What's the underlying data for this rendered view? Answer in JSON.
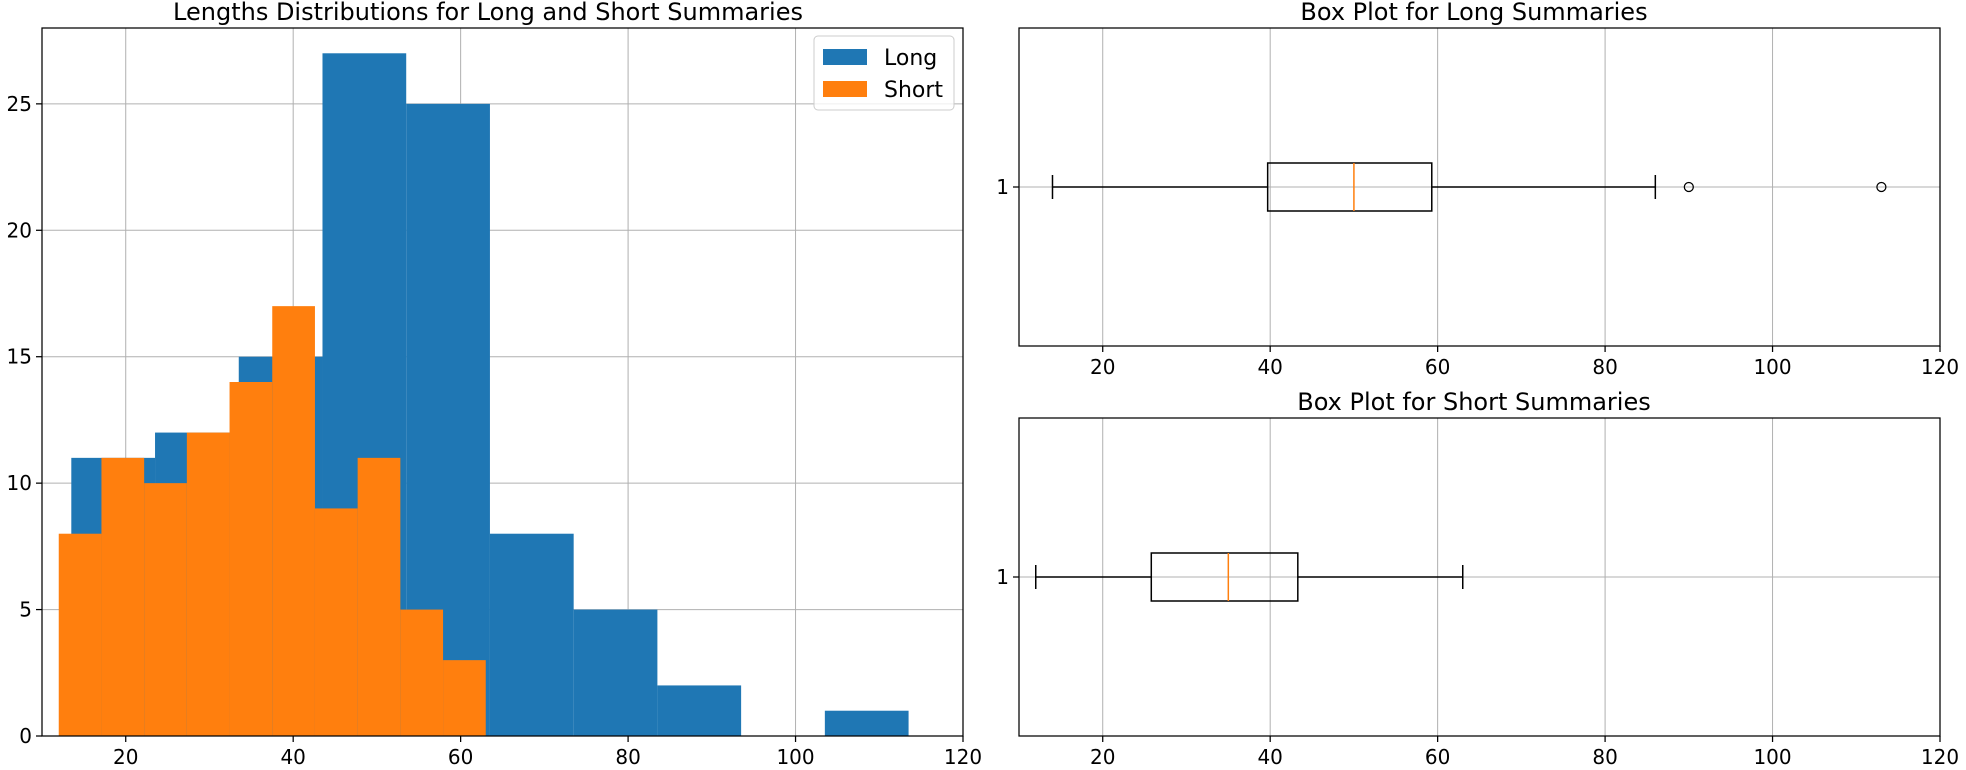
{
  "chart_data": [
    {
      "type": "histogram",
      "title": "Lengths Distributions for Long and Short Summaries",
      "xlim": [
        10,
        120
      ],
      "ylim": [
        0,
        28
      ],
      "xticks": [
        20,
        40,
        60,
        80,
        100,
        120
      ],
      "yticks": [
        0,
        5,
        10,
        15,
        20,
        25
      ],
      "grid": true,
      "legend_position": "top-right",
      "legend": [
        "Long",
        "Short"
      ],
      "series": [
        {
          "name": "Long",
          "color": "#1f77b4",
          "bins": [
            {
              "x0": 13.5,
              "x1": 23.5,
              "y": 11
            },
            {
              "x0": 23.5,
              "x1": 33.5,
              "y": 12
            },
            {
              "x0": 33.5,
              "x1": 43.5,
              "y": 15
            },
            {
              "x0": 43.5,
              "x1": 53.5,
              "y": 27
            },
            {
              "x0": 53.5,
              "x1": 63.5,
              "y": 25
            },
            {
              "x0": 63.5,
              "x1": 73.5,
              "y": 8
            },
            {
              "x0": 73.5,
              "x1": 83.5,
              "y": 5
            },
            {
              "x0": 83.5,
              "x1": 93.5,
              "y": 2
            },
            {
              "x0": 93.5,
              "x1": 103.5,
              "y": 0
            },
            {
              "x0": 103.5,
              "x1": 113.5,
              "y": 1
            }
          ]
        },
        {
          "name": "Short",
          "color": "#ff7f0e",
          "bins": [
            {
              "x0": 12,
              "x1": 17.1,
              "y": 8
            },
            {
              "x0": 17.1,
              "x1": 22.2,
              "y": 11
            },
            {
              "x0": 22.2,
              "x1": 27.3,
              "y": 10
            },
            {
              "x0": 27.3,
              "x1": 32.4,
              "y": 12
            },
            {
              "x0": 32.4,
              "x1": 37.5,
              "y": 14
            },
            {
              "x0": 37.5,
              "x1": 42.6,
              "y": 17
            },
            {
              "x0": 42.6,
              "x1": 47.7,
              "y": 9
            },
            {
              "x0": 47.7,
              "x1": 52.8,
              "y": 11
            },
            {
              "x0": 52.8,
              "x1": 57.9,
              "y": 5
            },
            {
              "x0": 57.9,
              "x1": 63,
              "y": 3
            }
          ]
        }
      ]
    },
    {
      "type": "box",
      "orientation": "horizontal",
      "title": "Box Plot for Long Summaries",
      "xlim": [
        10,
        120
      ],
      "xticks": [
        20,
        40,
        60,
        80,
        100,
        120
      ],
      "yticks": [
        "1"
      ],
      "grid": true,
      "stats": {
        "whisker_low": 14,
        "q1": 39.7,
        "median": 50,
        "q3": 59.3,
        "whisker_high": 86,
        "fliers": [
          90,
          113
        ]
      }
    },
    {
      "type": "box",
      "orientation": "horizontal",
      "title": "Box Plot for Short Summaries",
      "xlim": [
        10,
        120
      ],
      "xticks": [
        20,
        40,
        60,
        80,
        100,
        120
      ],
      "yticks": [
        "1"
      ],
      "grid": true,
      "stats": {
        "whisker_low": 12,
        "q1": 25.8,
        "median": 35,
        "q3": 43.3,
        "whisker_high": 63,
        "fliers": []
      }
    }
  ]
}
